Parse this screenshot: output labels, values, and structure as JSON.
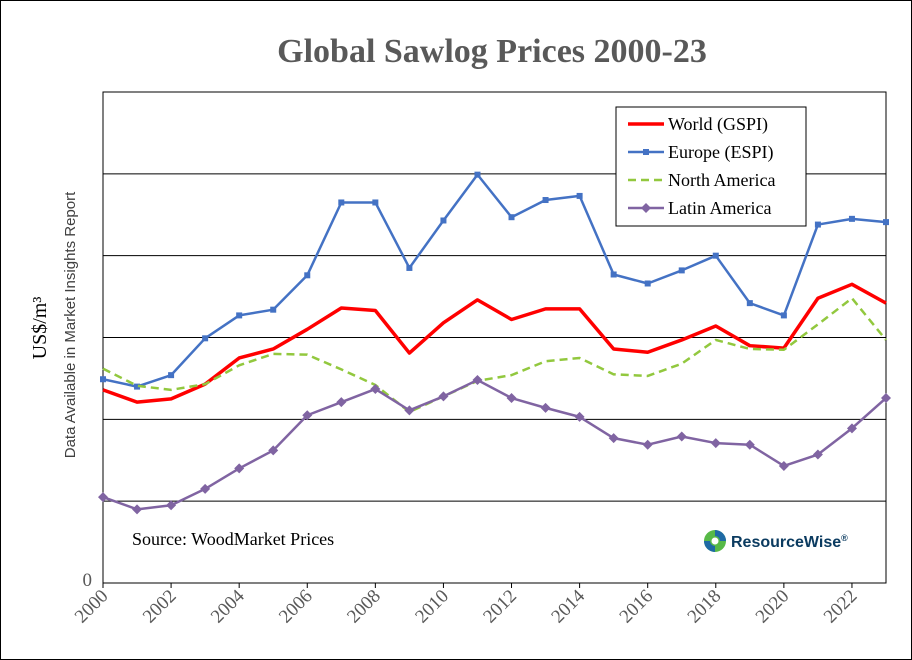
{
  "chart_data": {
    "type": "line",
    "title": "Global Sawlog Prices 2000-23",
    "ylabel": "US$/m³",
    "ylabel_note": "Data Available in Market Insights Report",
    "y_tick_labels": [
      "0"
    ],
    "x_tick_labels": [
      "2000",
      "2002",
      "2004",
      "2006",
      "2008",
      "2010",
      "2012",
      "2014",
      "2016",
      "2018",
      "2020",
      "2022"
    ],
    "x": [
      2000,
      2001,
      2002,
      2003,
      2004,
      2005,
      2006,
      2007,
      2008,
      2009,
      2010,
      2011,
      2012,
      2013,
      2014,
      2015,
      2016,
      2017,
      2018,
      2019,
      2020,
      2021,
      2022,
      2023
    ],
    "xlim": [
      2000,
      2023
    ],
    "ylim": [
      0,
      600
    ],
    "gridlines": [
      100,
      200,
      300,
      400,
      500
    ],
    "grid": "horizontal",
    "legend_position": "top-right",
    "series": [
      {
        "name": "World (GSPI)",
        "color": "#ff0000",
        "line_style": "solid",
        "marker": "none",
        "values": [
          236,
          221,
          225,
          243,
          275,
          286,
          310,
          336,
          333,
          281,
          318,
          346,
          322,
          335,
          335,
          286,
          282,
          297,
          314,
          290,
          287,
          348,
          365,
          342
        ]
      },
      {
        "name": "Europe (ESPI)",
        "color": "#4472c4",
        "line_style": "solid",
        "marker": "square",
        "values": [
          249,
          240,
          254,
          299,
          327,
          334,
          376,
          465,
          465,
          385,
          443,
          499,
          447,
          468,
          473,
          377,
          366,
          382,
          400,
          342,
          327,
          438,
          445,
          441
        ]
      },
      {
        "name": "North America",
        "color": "#92c83e",
        "line_style": "dashed",
        "marker": "none",
        "values": [
          262,
          241,
          236,
          243,
          266,
          280,
          279,
          261,
          242,
          209,
          228,
          247,
          254,
          271,
          275,
          255,
          253,
          268,
          297,
          286,
          285,
          316,
          348,
          297
        ]
      },
      {
        "name": "Latin America",
        "color": "#8064a2",
        "line_style": "solid",
        "marker": "diamond",
        "values": [
          105,
          90,
          95,
          115,
          140,
          162,
          205,
          221,
          237,
          211,
          228,
          248,
          226,
          214,
          203,
          177,
          169,
          179,
          171,
          169,
          143,
          157,
          189,
          226
        ]
      }
    ],
    "annotations": [
      "Source: WoodMarket Prices"
    ]
  },
  "logo": {
    "brand": "ResourceWise",
    "mark": "®",
    "colors": {
      "green": "#57b947",
      "blue": "#1f6aa5",
      "navy": "#0b3b60"
    }
  },
  "colors": {
    "title": "#595959",
    "grid": "#000000",
    "axis": "#000000"
  }
}
